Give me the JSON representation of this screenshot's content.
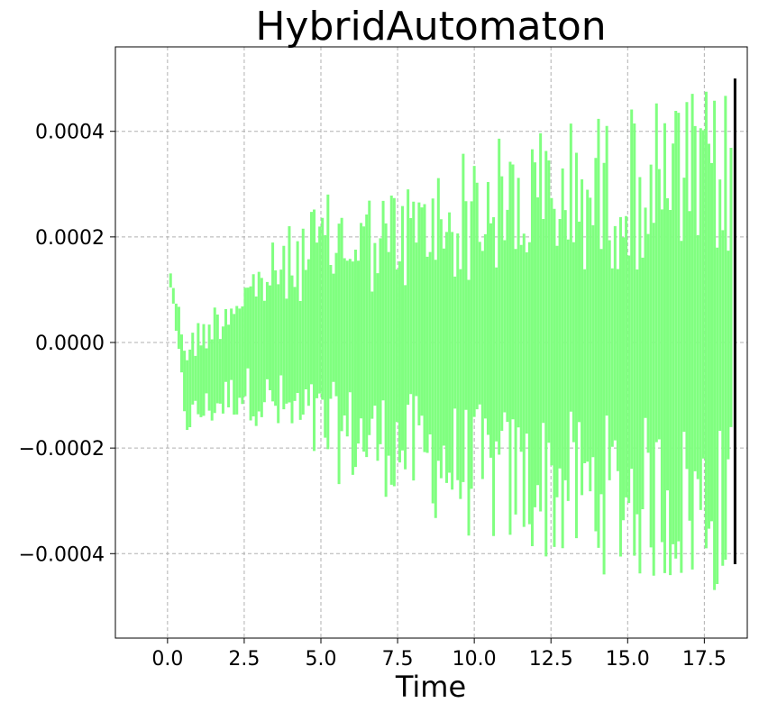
{
  "chart_data": {
    "type": "bar",
    "title": "HybridAutomaton",
    "xlabel": "Time",
    "ylabel": "",
    "xlim": [
      -1.7,
      18.9
    ],
    "ylim": [
      -0.00056,
      0.00056
    ],
    "xticks": [
      0.0,
      2.5,
      5.0,
      7.5,
      10.0,
      12.5,
      15.0,
      17.5
    ],
    "xtick_labels": [
      "0.0",
      "2.5",
      "5.0",
      "7.5",
      "10.0",
      "12.5",
      "15.0",
      "17.5"
    ],
    "yticks": [
      -0.0004,
      -0.0002,
      0.0,
      0.0002,
      0.0004
    ],
    "ytick_labels": [
      "−0.0004",
      "−0.0002",
      "0.0000",
      "0.0002",
      "0.0004"
    ],
    "grid": true,
    "colors": {
      "range_bars": "#80ff80",
      "final_range": "#000000"
    },
    "series": [
      {
        "style": "vertical-range-bars",
        "color": "#80ff80",
        "envelope_points": [
          {
            "t": 0.1,
            "upper": 0.00014,
            "lower": 0.0001
          },
          {
            "t": 0.6,
            "upper": 2e-05,
            "lower": -0.00018
          },
          {
            "t": 2.5,
            "upper": 0.00014,
            "lower": -0.00014
          },
          {
            "t": 5.0,
            "upper": 0.00028,
            "lower": -0.00026
          },
          {
            "t": 7.5,
            "upper": 0.0003,
            "lower": -0.0003
          },
          {
            "t": 10.0,
            "upper": 0.00038,
            "lower": -0.00038
          },
          {
            "t": 12.5,
            "upper": 0.00042,
            "lower": -0.00042
          },
          {
            "t": 15.0,
            "upper": 0.00045,
            "lower": -0.00045
          },
          {
            "t": 17.5,
            "upper": 0.00048,
            "lower": -0.00048
          },
          {
            "t": 18.3,
            "upper": 0.00049,
            "lower": -0.00049
          }
        ],
        "t_start": 0.1,
        "t_end": 18.35,
        "bar_spacing": 0.09
      },
      {
        "style": "vertical-range-bar",
        "color": "#000000",
        "t": 18.5,
        "upper": 0.0005,
        "lower": -0.00042
      }
    ]
  }
}
